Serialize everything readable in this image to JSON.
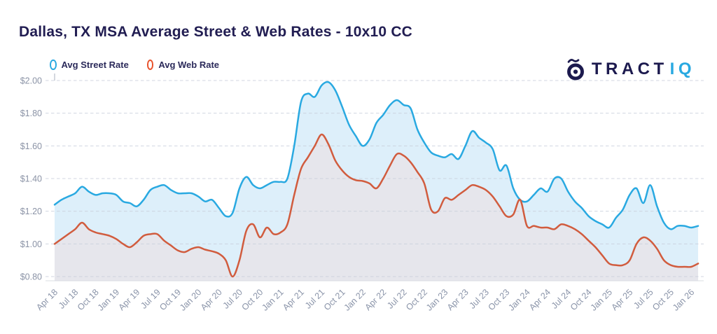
{
  "title": "Dallas, TX MSA Average Street & Web Rates - 10x10 CC",
  "legend": {
    "items": [
      {
        "label": "Avg Street Rate",
        "color": "#29a9e1"
      },
      {
        "label": "Avg Web Rate",
        "color": "#e8522c"
      }
    ]
  },
  "logo": {
    "text": "TRACT",
    "suffix": "IQ",
    "icon": "bullseye-icon",
    "text_color": "#1c1a4e",
    "suffix_color": "#29a9e1"
  },
  "chart_data": {
    "type": "area",
    "title": "Dallas, TX MSA Average Street & Web Rates - 10x10 CC",
    "x_start": "Apr 2018",
    "x_end": "Feb 2026",
    "x_interval": "monthly",
    "x_tick_labels": [
      "Apr 18",
      "Jul 18",
      "Oct 18",
      "Jan 19",
      "Apr 19",
      "Jul 19",
      "Oct 19",
      "Jan 20",
      "Apr 20",
      "Jul 20",
      "Oct 20",
      "Jan 21",
      "Apr 21",
      "Jul 21",
      "Oct 21",
      "Jan 22",
      "Apr 22",
      "Jul 22",
      "Oct 22",
      "Jan 23",
      "Apr 23",
      "Jul 23",
      "Oct 23",
      "Jan 24",
      "Apr 24",
      "Jul 24",
      "Oct 24",
      "Jan 25",
      "Apr 25",
      "Jul 25",
      "Oct 25",
      "Jan 26"
    ],
    "y_tick_labels": [
      "$2.00",
      "$1.80",
      "$1.60",
      "$1.40",
      "$1.20",
      "$1.00",
      "$0.80"
    ],
    "ylim": [
      0.8,
      2.0
    ],
    "grid": true,
    "legend_position": "top-left",
    "series": [
      {
        "name": "Avg Street Rate",
        "color": "#29a9e1",
        "fill": "#ddeffa",
        "values": [
          1.24,
          1.27,
          1.29,
          1.31,
          1.35,
          1.32,
          1.3,
          1.31,
          1.31,
          1.3,
          1.26,
          1.25,
          1.23,
          1.27,
          1.33,
          1.35,
          1.36,
          1.33,
          1.31,
          1.31,
          1.31,
          1.29,
          1.26,
          1.27,
          1.22,
          1.17,
          1.19,
          1.34,
          1.41,
          1.36,
          1.34,
          1.36,
          1.38,
          1.38,
          1.4,
          1.6,
          1.87,
          1.92,
          1.9,
          1.97,
          1.99,
          1.94,
          1.84,
          1.73,
          1.66,
          1.6,
          1.64,
          1.74,
          1.79,
          1.85,
          1.88,
          1.85,
          1.83,
          1.7,
          1.62,
          1.56,
          1.54,
          1.53,
          1.55,
          1.52,
          1.6,
          1.69,
          1.65,
          1.62,
          1.58,
          1.45,
          1.48,
          1.34,
          1.27,
          1.26,
          1.3,
          1.34,
          1.32,
          1.4,
          1.4,
          1.32,
          1.26,
          1.22,
          1.17,
          1.14,
          1.12,
          1.1,
          1.16,
          1.21,
          1.3,
          1.34,
          1.25,
          1.36,
          1.23,
          1.13,
          1.09,
          1.11,
          1.11,
          1.1,
          1.11
        ]
      },
      {
        "name": "Avg Web Rate",
        "color": "#d15c3e",
        "fill": "#e7e6eb",
        "values": [
          1.0,
          1.03,
          1.06,
          1.09,
          1.13,
          1.09,
          1.07,
          1.06,
          1.05,
          1.03,
          1.0,
          0.98,
          1.01,
          1.05,
          1.06,
          1.06,
          1.02,
          0.99,
          0.96,
          0.95,
          0.97,
          0.98,
          0.965,
          0.955,
          0.94,
          0.9,
          0.8,
          0.9,
          1.08,
          1.12,
          1.04,
          1.1,
          1.06,
          1.07,
          1.12,
          1.3,
          1.46,
          1.53,
          1.6,
          1.67,
          1.61,
          1.51,
          1.45,
          1.41,
          1.39,
          1.385,
          1.37,
          1.34,
          1.4,
          1.48,
          1.55,
          1.54,
          1.5,
          1.44,
          1.37,
          1.21,
          1.2,
          1.28,
          1.27,
          1.3,
          1.33,
          1.36,
          1.35,
          1.33,
          1.29,
          1.23,
          1.17,
          1.18,
          1.27,
          1.11,
          1.11,
          1.1,
          1.1,
          1.09,
          1.12,
          1.11,
          1.09,
          1.06,
          1.02,
          0.98,
          0.93,
          0.88,
          0.87,
          0.87,
          0.9,
          1.0,
          1.04,
          1.02,
          0.97,
          0.9,
          0.87,
          0.86,
          0.86,
          0.86,
          0.88
        ]
      }
    ]
  }
}
